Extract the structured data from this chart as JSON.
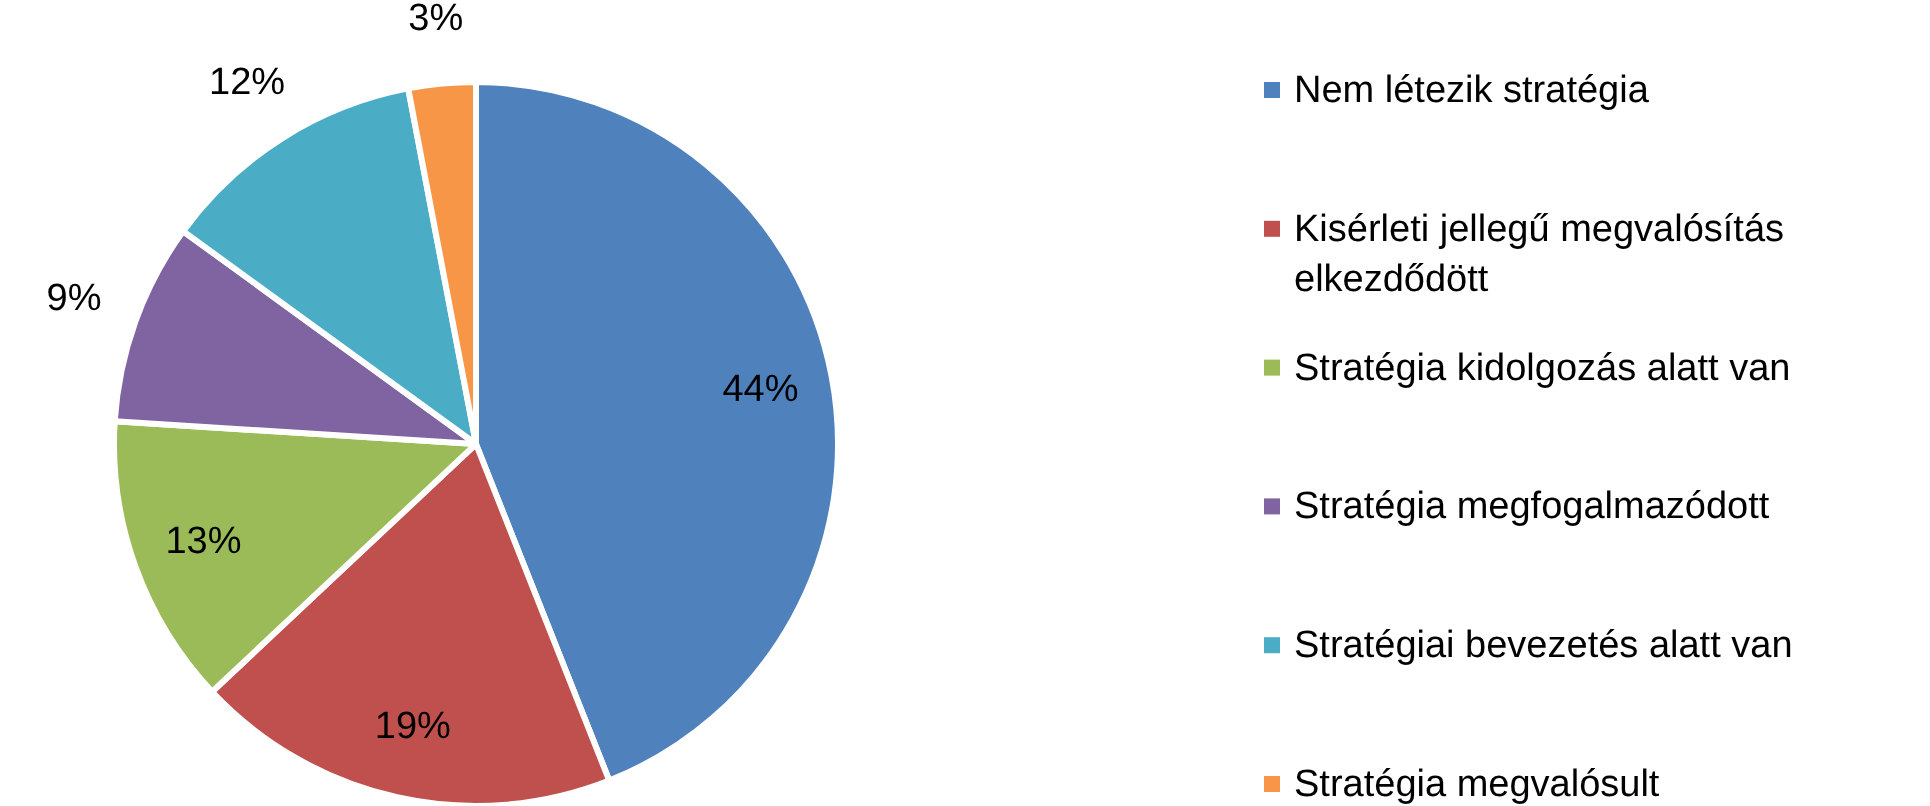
{
  "chart_data": {
    "type": "pie",
    "categories": [
      "Nem létezik stratégia",
      "Kisérleti jellegű megvalósítás elkezdődött",
      "Stratégia kidolgozás alatt van",
      "Stratégia megfogalmazódott",
      "Stratégiai bevezetés alatt van",
      "Stratégia megvalósult"
    ],
    "values": [
      44,
      19,
      13,
      9,
      12,
      3
    ],
    "colors": [
      "#4f81bd",
      "#c0504d",
      "#9bbb59",
      "#8064a2",
      "#4bacc6",
      "#f79646"
    ],
    "value_labels": [
      "44%",
      "19%",
      "13%",
      "9%",
      "12%",
      "3%"
    ],
    "legend": "right"
  }
}
